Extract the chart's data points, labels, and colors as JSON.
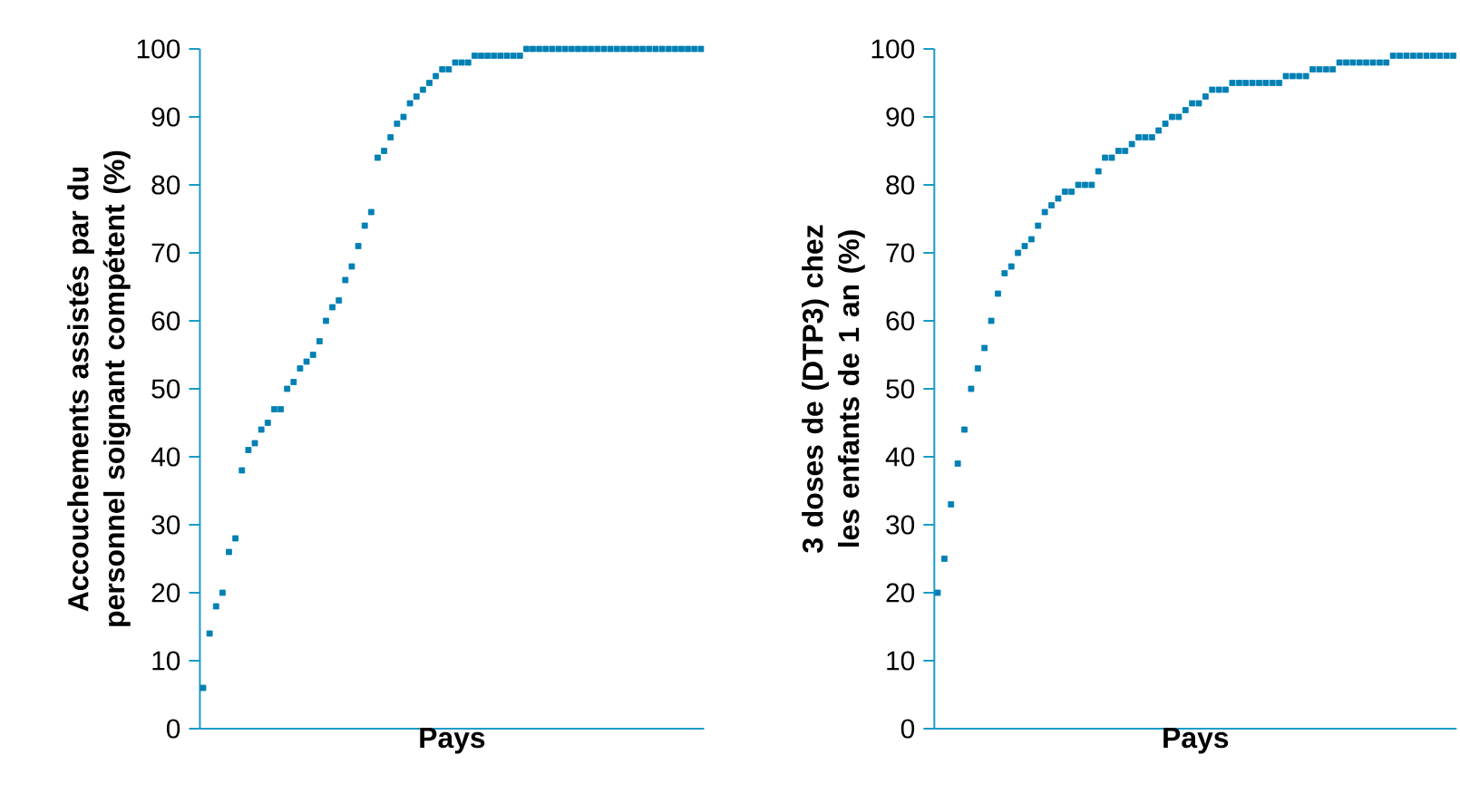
{
  "chart_data": [
    {
      "type": "scatter",
      "xlabel": "Pays",
      "ylabel": "Accouchements assistés par du personnel soignant compétent (%)",
      "marker": "square",
      "tick_labels": "y",
      "ylim": [
        0,
        100
      ],
      "yticks": [
        0,
        10,
        20,
        30,
        40,
        50,
        60,
        70,
        80,
        90,
        100
      ],
      "categories": [
        null,
        null,
        null,
        null,
        null,
        null,
        null,
        null,
        null,
        null,
        null,
        null,
        null,
        null,
        null,
        null,
        null,
        null,
        null,
        null,
        null,
        null,
        null,
        null,
        null,
        null,
        null,
        null,
        null,
        null,
        null,
        null,
        null,
        null,
        null,
        null,
        null,
        null,
        null,
        null,
        null,
        null,
        null,
        null,
        null,
        null,
        null,
        null,
        null,
        null,
        null,
        null,
        null,
        null,
        null,
        null,
        null,
        null,
        null,
        null,
        null,
        null,
        null,
        null,
        null,
        null,
        null,
        null,
        null,
        null,
        null,
        null,
        null,
        null,
        null,
        null,
        null,
        null
      ],
      "series": [
        {
          "color": "#0080b4",
          "values": [
            6,
            14,
            18,
            20,
            26,
            28,
            38,
            41,
            42,
            44,
            45,
            47,
            47,
            50,
            51,
            53,
            54,
            55,
            57,
            60,
            62,
            63,
            66,
            68,
            71,
            74,
            76,
            84,
            85,
            87,
            89,
            90,
            92,
            93,
            94,
            95,
            96,
            97,
            97,
            98,
            98,
            98,
            99,
            99,
            99,
            99,
            99,
            99,
            99,
            99,
            100,
            100,
            100,
            100,
            100,
            100,
            100,
            100,
            100,
            100,
            100,
            100,
            100,
            100,
            100,
            100,
            100,
            100,
            100,
            100,
            100,
            100,
            100,
            100,
            100,
            100,
            100,
            100
          ]
        }
      ]
    },
    {
      "type": "scatter",
      "xlabel": "Pays",
      "ylabel": "3 doses de (DTP3) chez les enfants de 1 an (%)",
      "marker": "square",
      "tick_labels": "y",
      "ylim": [
        0,
        100
      ],
      "yticks": [
        0,
        10,
        20,
        30,
        40,
        50,
        60,
        70,
        80,
        90,
        100
      ],
      "categories": [
        null,
        null,
        null,
        null,
        null,
        null,
        null,
        null,
        null,
        null,
        null,
        null,
        null,
        null,
        null,
        null,
        null,
        null,
        null,
        null,
        null,
        null,
        null,
        null,
        null,
        null,
        null,
        null,
        null,
        null,
        null,
        null,
        null,
        null,
        null,
        null,
        null,
        null,
        null,
        null,
        null,
        null,
        null,
        null,
        null,
        null,
        null,
        null,
        null,
        null,
        null,
        null,
        null,
        null,
        null,
        null,
        null,
        null,
        null,
        null,
        null,
        null,
        null,
        null,
        null,
        null,
        null,
        null,
        null,
        null,
        null,
        null,
        null,
        null,
        null,
        null,
        null,
        null
      ],
      "series": [
        {
          "color": "#0080b4",
          "values": [
            20,
            25,
            33,
            39,
            44,
            50,
            53,
            56,
            60,
            64,
            67,
            68,
            70,
            71,
            72,
            74,
            76,
            77,
            78,
            79,
            79,
            80,
            80,
            80,
            82,
            84,
            84,
            85,
            85,
            86,
            87,
            87,
            87,
            88,
            89,
            90,
            90,
            91,
            92,
            92,
            93,
            94,
            94,
            94,
            95,
            95,
            95,
            95,
            95,
            95,
            95,
            95,
            96,
            96,
            96,
            96,
            97,
            97,
            97,
            97,
            98,
            98,
            98,
            98,
            98,
            98,
            98,
            98,
            99,
            99,
            99,
            99,
            99,
            99,
            99,
            99,
            99,
            99
          ]
        }
      ]
    }
  ]
}
